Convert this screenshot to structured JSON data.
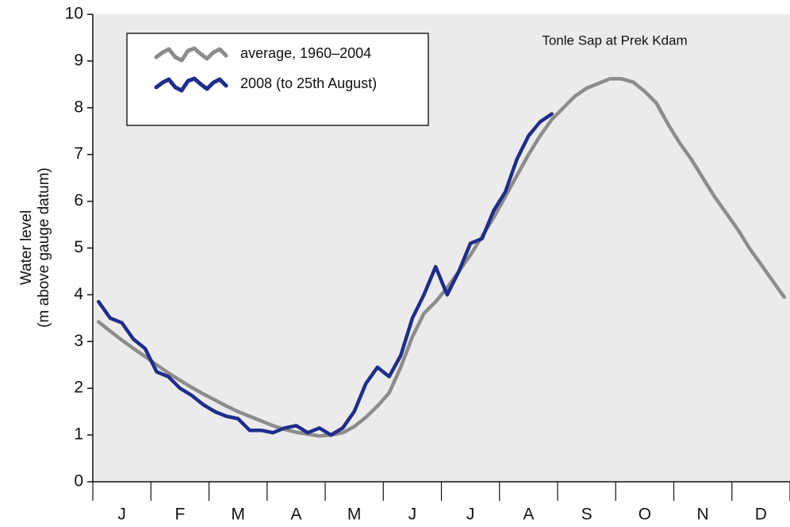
{
  "chart_data": {
    "type": "line",
    "annotation": "Tonle Sap at Prek Kdam",
    "ylabel": [
      "Water level",
      "(m above gauge datum)"
    ],
    "categories": [
      null,
      null,
      "J",
      null,
      null,
      null,
      null,
      "F",
      null,
      null,
      null,
      null,
      "M",
      null,
      null,
      null,
      null,
      "A",
      null,
      null,
      null,
      null,
      "M",
      null,
      null,
      null,
      null,
      "J",
      null,
      null,
      null,
      null,
      "J",
      null,
      null,
      null,
      null,
      "A",
      null,
      null,
      null,
      null,
      "S",
      null,
      null,
      null,
      null,
      "O",
      null,
      null,
      null,
      null,
      "N",
      null,
      null,
      null,
      null,
      "D",
      null,
      null
    ],
    "series": [
      {
        "name": "average, 1960–2004",
        "color": "#8c8c8c",
        "values": [
          3.42,
          3.22,
          3.03,
          2.85,
          2.68,
          2.5,
          2.33,
          2.17,
          2.02,
          1.88,
          1.75,
          1.62,
          1.5,
          1.4,
          1.3,
          1.2,
          1.12,
          1.06,
          1.02,
          0.98,
          1.0,
          1.05,
          1.18,
          1.38,
          1.62,
          1.9,
          2.45,
          3.1,
          3.6,
          3.85,
          4.15,
          4.5,
          4.85,
          5.25,
          5.65,
          6.1,
          6.55,
          7.0,
          7.4,
          7.75,
          8.0,
          8.25,
          8.42,
          8.52,
          8.62,
          8.62,
          8.55,
          8.35,
          8.1,
          7.65,
          7.25,
          6.9,
          6.5,
          6.1,
          5.75,
          5.4,
          5.0,
          4.65,
          4.3,
          3.95
        ]
      },
      {
        "name": "2008 (to 25th August)",
        "color": "#1f2d8a",
        "values": [
          3.85,
          3.5,
          3.4,
          3.05,
          2.85,
          2.35,
          2.25,
          2.0,
          1.85,
          1.65,
          1.5,
          1.4,
          1.35,
          1.1,
          1.1,
          1.05,
          1.15,
          1.2,
          1.05,
          1.15,
          1.0,
          1.15,
          1.5,
          2.1,
          2.45,
          2.25,
          2.7,
          3.5,
          4.0,
          4.6,
          4.0,
          4.5,
          5.1,
          5.2,
          5.8,
          6.2,
          6.9,
          7.4,
          7.7,
          7.87,
          null,
          null,
          null,
          null,
          null,
          null,
          null,
          null,
          null,
          null,
          null,
          null,
          null,
          null,
          null,
          null,
          null,
          null,
          null,
          null
        ]
      }
    ],
    "ylim": [
      0,
      10
    ],
    "yticks": [
      0,
      1,
      2,
      3,
      4,
      5,
      6,
      7,
      8,
      9,
      10
    ],
    "legend": "upper left"
  }
}
